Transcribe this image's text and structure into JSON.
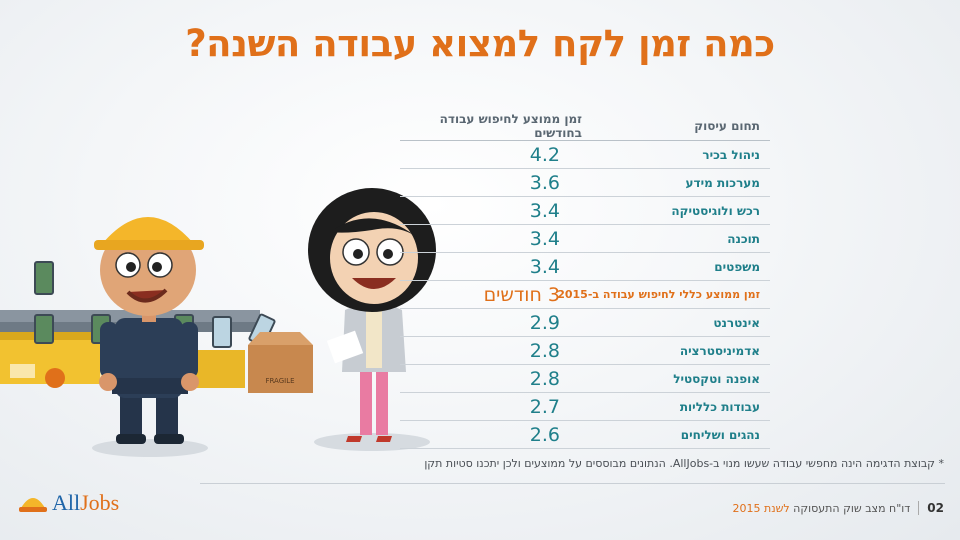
{
  "title": "כמה זמן לקח למצוא עבודה השנה?",
  "table": {
    "header_field": "תחום עיסוק",
    "header_time": "זמן ממוצע לחיפוש עבודה בחודשים",
    "rows": [
      {
        "field": "ניהול בכיר",
        "value": "4.2"
      },
      {
        "field": "מערכות מידע",
        "value": "3.6"
      },
      {
        "field": "רכש ולוגיסטיקה",
        "value": "3.4"
      },
      {
        "field": "תוכנה",
        "value": "3.4"
      },
      {
        "field": "משפטים",
        "value": "3.4"
      },
      {
        "field": "זמן ממוצע כללי לחיפוש עבודה ב-2015",
        "value": "3 חודשים",
        "highlight": true
      },
      {
        "field": "אינטרנט",
        "value": "2.9"
      },
      {
        "field": "אדמיניסטרציה",
        "value": "2.8"
      },
      {
        "field": "אופנה וטקסטיל",
        "value": "2.8"
      },
      {
        "field": "עבודות כלליות",
        "value": "2.7"
      },
      {
        "field": "נהגים ושליחים",
        "value": "2.6"
      }
    ]
  },
  "footnote": "* קבוצת הדגימה הינה מחפשי עבודה שעשו מנוי ב-AllJobs. הנתונים מבוססים על ממוצעים ולכן יתכנו סטיות תקן",
  "footer": {
    "page": "02",
    "text": "דו\"ח מצב שוק התעסוקה ",
    "year": "לשנת 2015"
  },
  "logo": {
    "text_a": "All",
    "text_b": "Jobs"
  },
  "box_label": "FRAGILE",
  "colors": {
    "accent": "#e0701a",
    "teal": "#1f7f8a",
    "brand_blue": "#1e64a8"
  }
}
